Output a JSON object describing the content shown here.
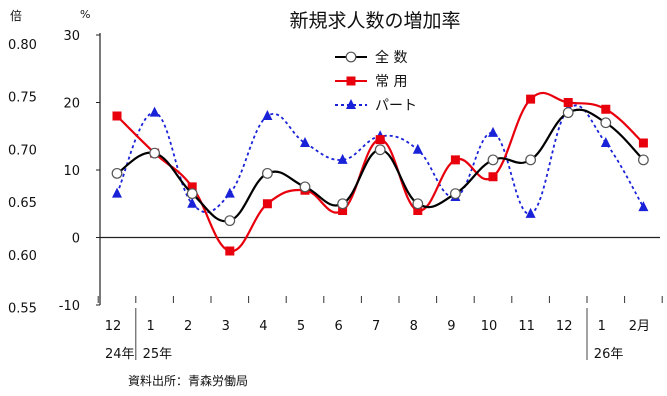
{
  "chart_data": {
    "type": "line",
    "title": "新規求人数の増加率",
    "left_axis_unit": "倍",
    "right_axis_unit": "%",
    "left_ticks": [
      "0.80",
      "0.75",
      "0.70",
      "0.65",
      "0.60",
      "0.55"
    ],
    "right_ticks": [
      "30",
      "20",
      "10",
      "0",
      "-10"
    ],
    "ylim": [
      -10,
      30
    ],
    "grid": false,
    "legend_position": "top-center",
    "categories": [
      "12",
      "1",
      "2",
      "3",
      "4",
      "5",
      "6",
      "7",
      "8",
      "9",
      "10",
      "11",
      "12",
      "1",
      "2月"
    ],
    "year_labels": [
      {
        "text": "24年",
        "index": 0
      },
      {
        "text": "25年",
        "index": 1
      },
      {
        "text": "26年",
        "index": 13
      }
    ],
    "series": [
      {
        "name": "全 数",
        "color": "#000000",
        "style": "solid-smooth",
        "marker": "open-circle",
        "values": [
          9.5,
          12.5,
          6.5,
          2.5,
          9.5,
          7.5,
          5.0,
          13.0,
          5.0,
          6.5,
          11.5,
          11.5,
          18.5,
          17.0,
          11.5
        ]
      },
      {
        "name": "常 用",
        "color": "#e8000c",
        "style": "solid-smooth",
        "marker": "filled-square",
        "values": [
          18.0,
          12.5,
          7.5,
          -2.0,
          5.0,
          7.0,
          4.0,
          14.5,
          4.0,
          11.5,
          9.0,
          20.5,
          20.0,
          19.0,
          14.0
        ]
      },
      {
        "name": "パート",
        "color": "#1a22d8",
        "style": "dotted-smooth",
        "marker": "filled-triangle",
        "values": [
          6.5,
          18.5,
          5.0,
          6.5,
          18.0,
          14.0,
          11.5,
          15.0,
          13.0,
          6.0,
          15.5,
          3.5,
          19.0,
          14.0,
          4.5
        ]
      }
    ],
    "source_note": "資料出所：青森労働局"
  }
}
